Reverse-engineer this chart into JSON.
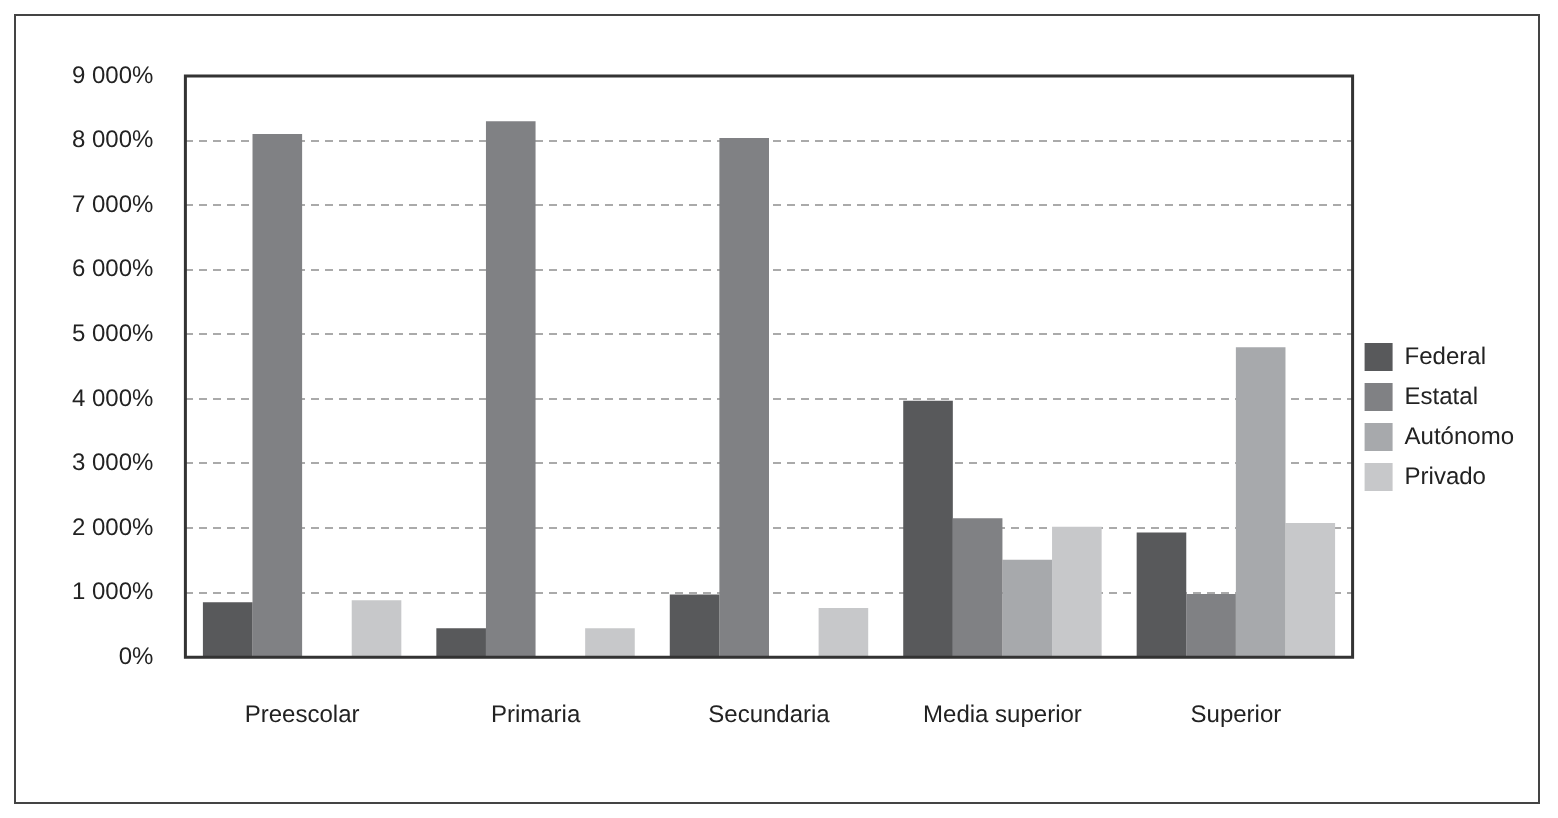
{
  "chart_data": {
    "type": "bar",
    "categories": [
      "Preescolar",
      "Primaria",
      "Secundaria",
      "Media superior",
      "Superior"
    ],
    "series": [
      {
        "name": "Federal",
        "color": "#58595b",
        "values": [
          850,
          450,
          970,
          3970,
          1930
        ]
      },
      {
        "name": "Estatal",
        "color": "#808184",
        "values": [
          8100,
          8300,
          8040,
          2150,
          980
        ]
      },
      {
        "name": "Autónomo",
        "color": "#a7a9ac",
        "values": [
          0,
          0,
          0,
          1510,
          4800
        ]
      },
      {
        "name": "Privado",
        "color": "#c7c8ca",
        "values": [
          880,
          450,
          760,
          2020,
          2080
        ]
      }
    ],
    "ylim": [
      0,
      9000
    ],
    "yticks": [
      {
        "value": 0,
        "label": "0%"
      },
      {
        "value": 1000,
        "label": "1 000%"
      },
      {
        "value": 2000,
        "label": "2 000%"
      },
      {
        "value": 3000,
        "label": "3 000%"
      },
      {
        "value": 4000,
        "label": "4 000%"
      },
      {
        "value": 5000,
        "label": "5 000%"
      },
      {
        "value": 6000,
        "label": "6 000%"
      },
      {
        "value": 7000,
        "label": "7 000%"
      },
      {
        "value": 8000,
        "label": "8 000%"
      },
      {
        "value": 9000,
        "label": "9 000%"
      }
    ],
    "grid": "y",
    "legend": "right"
  }
}
